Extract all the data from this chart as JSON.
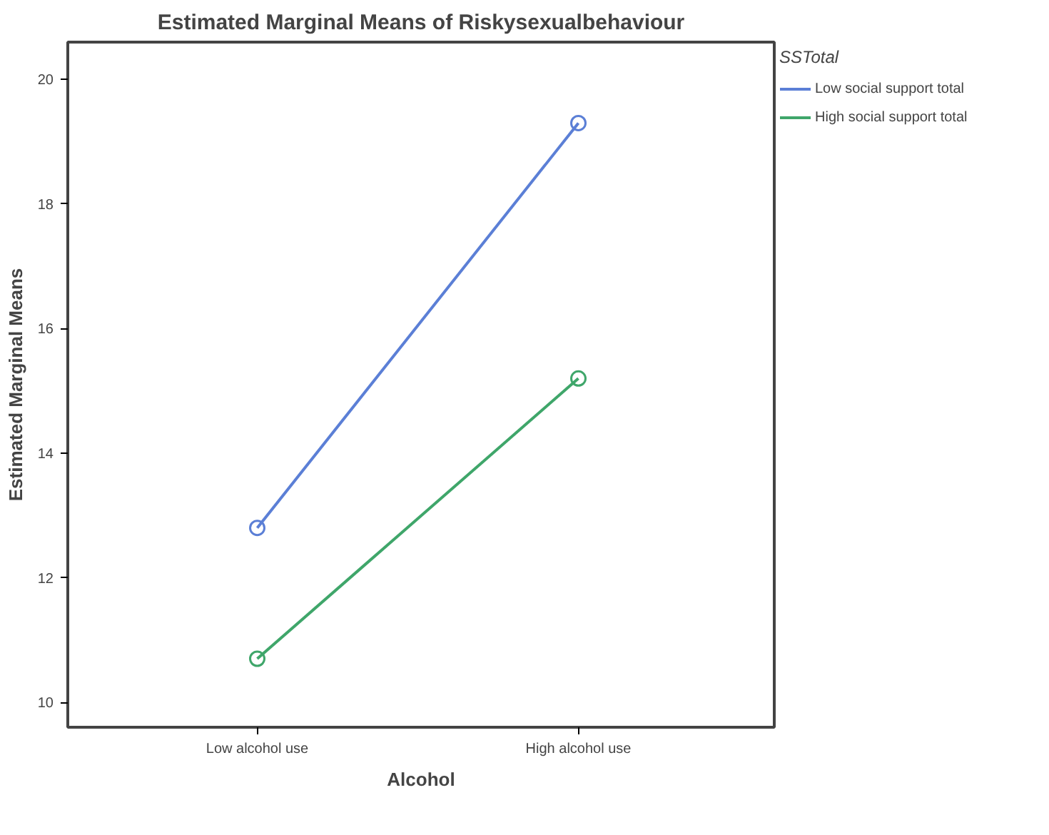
{
  "chart_data": {
    "type": "line",
    "title": "Estimated Marginal Means of Riskysexualbehaviour",
    "xlabel": "Alcohol",
    "ylabel": "Estimated Marginal Means",
    "legend_title": "SSTotal",
    "categories": [
      "Low alcohol use",
      "High alcohol use"
    ],
    "series": [
      {
        "name": "Low social support total",
        "color": "#5b7fd6",
        "values": [
          12.8,
          19.3
        ]
      },
      {
        "name": "High social support total",
        "color": "#3fa66a",
        "values": [
          10.7,
          15.2
        ]
      }
    ],
    "ylim": [
      9.6,
      20.6
    ],
    "yticks": [
      10,
      12,
      14,
      16,
      18,
      20
    ],
    "grid": false,
    "legend": "top right",
    "marker": "circle",
    "line_style": "solid"
  }
}
